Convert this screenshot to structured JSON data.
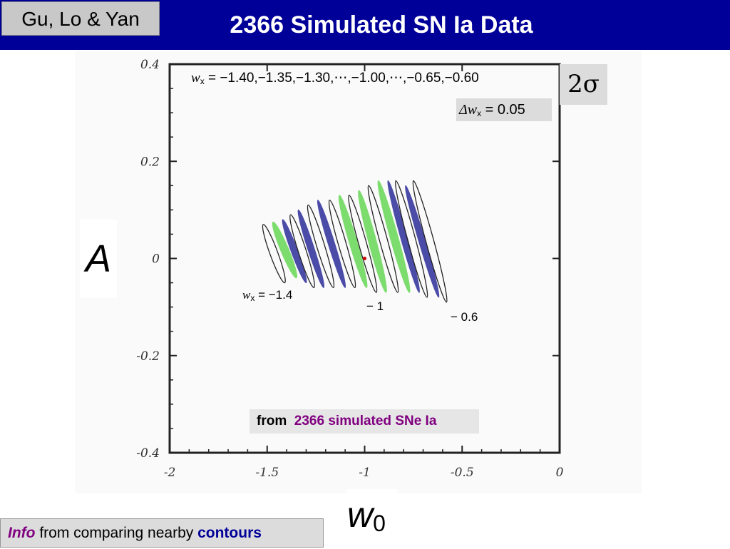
{
  "header": {
    "authors": "Gu, Lo & Yan",
    "title": "2366 Simulated SN Ia Data"
  },
  "confidence_badge": "2σ",
  "annotations": {
    "wx_values_prefix": "w",
    "wx_values_sub": "x",
    "wx_values_text": " = −1.40,−1.35,−1.30,⋯,−1.00,⋯,−0.65,−0.60",
    "dwx_prefix": "Δw",
    "dwx_sub": "x",
    "dwx_text": " = 0.05",
    "label_left_prefix": "w",
    "label_left_sub": "x",
    "label_left_text": " = −1.4",
    "label_mid": "− 1",
    "label_right": "− 0.6",
    "source_prefix": "from",
    "source_highlight": "2366 simulated SNe Ia"
  },
  "footer": {
    "info_word": "Info",
    "info_middle": " from comparing nearby ",
    "info_contours": "contours"
  },
  "colors": {
    "title_bar": "#000099",
    "green_contour": "#7ddc6e",
    "blue_contour": "#4b4ba8",
    "outline_contour": "#222222",
    "marker": "#cc0000"
  },
  "chart_data": {
    "type": "scatter",
    "title": "",
    "xlabel": "w0",
    "ylabel": "A",
    "xlim": [
      -2,
      0
    ],
    "ylim": [
      -0.4,
      0.4
    ],
    "xticks": [
      "-2",
      "-1.5",
      "-1",
      "-0.5",
      "0"
    ],
    "yticks": [
      "-0.4",
      "-0.2",
      "0",
      "0.2",
      "0.4"
    ],
    "grid": false,
    "best_fit_point": {
      "x": -1.0,
      "y": 0.0
    },
    "contour_level": "2σ",
    "contours": [
      {
        "wx": -1.4,
        "style": "outline",
        "x_top": -1.52,
        "y_top": 0.07,
        "x_bottom": -1.41,
        "y_bottom": -0.05
      },
      {
        "wx": -1.35,
        "style": "green",
        "x_top": -1.47,
        "y_top": 0.075,
        "x_bottom": -1.35,
        "y_bottom": -0.04
      },
      {
        "wx": -1.3,
        "style": "blue",
        "x_top": -1.42,
        "y_top": 0.08,
        "x_bottom": -1.3,
        "y_bottom": -0.05
      },
      {
        "wx": -1.25,
        "style": "outline",
        "x_top": -1.38,
        "y_top": 0.09,
        "x_bottom": -1.26,
        "y_bottom": -0.06
      },
      {
        "wx": -1.2,
        "style": "blue",
        "x_top": -1.34,
        "y_top": 0.1,
        "x_bottom": -1.21,
        "y_bottom": -0.06
      },
      {
        "wx": -1.15,
        "style": "outline",
        "x_top": -1.29,
        "y_top": 0.11,
        "x_bottom": -1.16,
        "y_bottom": -0.06
      },
      {
        "wx": -1.1,
        "style": "blue",
        "x_top": -1.24,
        "y_top": 0.12,
        "x_bottom": -1.1,
        "y_bottom": -0.06
      },
      {
        "wx": -1.05,
        "style": "outline",
        "x_top": -1.18,
        "y_top": 0.12,
        "x_bottom": -1.05,
        "y_bottom": -0.06
      },
      {
        "wx": -1.0,
        "style": "green",
        "x_top": -1.13,
        "y_top": 0.13,
        "x_bottom": -0.99,
        "y_bottom": -0.06
      },
      {
        "wx": -0.95,
        "style": "outline",
        "x_top": -1.08,
        "y_top": 0.13,
        "x_bottom": -0.94,
        "y_bottom": -0.07
      },
      {
        "wx": -0.9,
        "style": "green",
        "x_top": -1.03,
        "y_top": 0.14,
        "x_bottom": -0.89,
        "y_bottom": -0.07
      },
      {
        "wx": -0.85,
        "style": "outline",
        "x_top": -0.98,
        "y_top": 0.15,
        "x_bottom": -0.83,
        "y_bottom": -0.07
      },
      {
        "wx": -0.8,
        "style": "green",
        "x_top": -0.93,
        "y_top": 0.16,
        "x_bottom": -0.77,
        "y_bottom": -0.07
      },
      {
        "wx": -0.75,
        "style": "blue",
        "x_top": -0.88,
        "y_top": 0.16,
        "x_bottom": -0.72,
        "y_bottom": -0.07
      },
      {
        "wx": -0.7,
        "style": "outline",
        "x_top": -0.84,
        "y_top": 0.16,
        "x_bottom": -0.68,
        "y_bottom": -0.08
      },
      {
        "wx": -0.65,
        "style": "blue",
        "x_top": -0.79,
        "y_top": 0.15,
        "x_bottom": -0.62,
        "y_bottom": -0.08
      },
      {
        "wx": -0.6,
        "style": "outline",
        "x_top": -0.75,
        "y_top": 0.16,
        "x_bottom": -0.58,
        "y_bottom": -0.09
      }
    ]
  }
}
